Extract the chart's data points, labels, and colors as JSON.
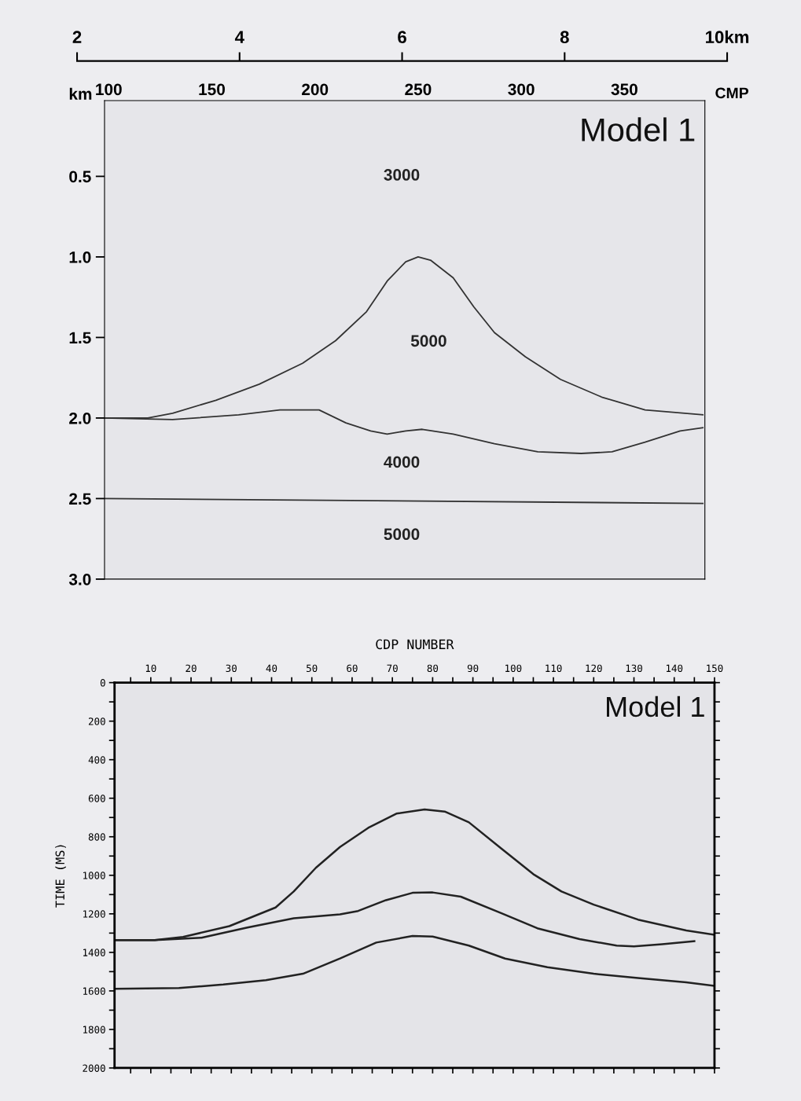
{
  "chart_data": [
    {
      "type": "line",
      "xlabel": "CMP",
      "ylabel": "km",
      "xlim": [
        98,
        389
      ],
      "xticks": [
        100,
        150,
        200,
        250,
        300,
        350
      ],
      "x2lim": [
        2,
        10
      ],
      "x2ticks": [
        2,
        4,
        6,
        8,
        {
          "value": 10,
          "label": "10km"
        }
      ],
      "ylim": [
        3.0,
        0.03
      ],
      "yticks": [
        {
          "value": 0.5,
          "label": "0.5"
        },
        {
          "value": 1.0,
          "label": "1.0"
        },
        {
          "value": 1.5,
          "label": "1.5"
        },
        {
          "value": 2.0,
          "label": "2.0"
        },
        {
          "value": 2.5,
          "label": "2.5"
        },
        {
          "value": 3.0,
          "label": "3.0"
        }
      ],
      "series": [
        {
          "color": "#333333",
          "x": [
            98,
            119,
            131,
            152,
            173,
            194,
            210,
            225,
            235,
            244,
            250,
            256,
            267,
            277,
            287,
            302,
            319,
            339,
            360,
            388
          ],
          "values": [
            2.0,
            2.0,
            1.97,
            1.89,
            1.79,
            1.66,
            1.52,
            1.34,
            1.15,
            1.03,
            1.0,
            1.02,
            1.13,
            1.31,
            1.47,
            1.62,
            1.76,
            1.87,
            1.95,
            1.98
          ]
        },
        {
          "color": "#333333",
          "x": [
            98,
            131,
            163,
            183,
            198,
            202,
            215,
            227,
            235,
            244,
            252,
            267,
            287,
            308,
            329,
            344,
            360,
            377,
            388
          ],
          "values": [
            2.0,
            2.01,
            1.98,
            1.95,
            1.95,
            1.95,
            2.03,
            2.08,
            2.1,
            2.08,
            2.07,
            2.1,
            2.16,
            2.21,
            2.22,
            2.21,
            2.15,
            2.08,
            2.06
          ]
        },
        {
          "color": "#333333",
          "x": [
            98,
            388
          ],
          "values": [
            2.5,
            2.53
          ]
        }
      ],
      "annotations": [
        "Model 1",
        "3000",
        "5000",
        "4000",
        "5000"
      ]
    },
    {
      "type": "line",
      "xlabel": "CDP NUMBER",
      "ylabel": "TIME (MS)",
      "xlim": [
        1,
        150
      ],
      "xticks": [
        {
          "value": 5,
          "label": null
        },
        10,
        {
          "value": 15,
          "label": null
        },
        20,
        {
          "value": 25,
          "label": null
        },
        30,
        {
          "value": 35,
          "label": null
        },
        40,
        {
          "value": 45,
          "label": null
        },
        50,
        {
          "value": 55,
          "label": null
        },
        60,
        {
          "value": 65,
          "label": null
        },
        70,
        {
          "value": 75,
          "label": null
        },
        80,
        {
          "value": 85,
          "label": null
        },
        90,
        {
          "value": 95,
          "label": null
        },
        100,
        {
          "value": 105,
          "label": null
        },
        110,
        {
          "value": 115,
          "label": null
        },
        120,
        {
          "value": 125,
          "label": null
        },
        130,
        {
          "value": 135,
          "label": null
        },
        140,
        {
          "value": 145,
          "label": null
        },
        150
      ],
      "ylim": [
        2000,
        0
      ],
      "yticks": [
        0,
        {
          "value": 100,
          "label": null
        },
        200,
        {
          "value": 300,
          "label": null
        },
        400,
        {
          "value": 500,
          "label": null
        },
        600,
        {
          "value": 700,
          "label": null
        },
        800,
        {
          "value": 900,
          "label": null
        },
        1000,
        {
          "value": 1100,
          "label": null
        },
        1200,
        {
          "value": 1300,
          "label": null
        },
        1400,
        {
          "value": 1500,
          "label": null
        },
        1600,
        {
          "value": 1700,
          "label": null
        },
        1800,
        {
          "value": 1900,
          "label": null
        },
        2000
      ],
      "series": [
        {
          "color": "#222222",
          "x": [
            1,
            11,
            18,
            29.5,
            41,
            45.5,
            51,
            57,
            64,
            71,
            78,
            83,
            89,
            97,
            105,
            112,
            120,
            131,
            143,
            150
          ],
          "values": [
            1336,
            1336,
            1320,
            1264,
            1167,
            1084,
            961,
            853,
            754,
            680,
            658,
            669,
            725,
            860,
            994,
            1084,
            1152,
            1230,
            1286,
            1309
          ]
        },
        {
          "color": "#222222",
          "x": [
            1,
            11,
            22.6,
            34,
            45.5,
            57,
            61.5,
            68.4,
            75,
            80,
            87,
            97,
            106,
            116.5,
            125.7,
            130,
            137,
            145
          ],
          "values": [
            1336,
            1336,
            1324,
            1271,
            1223,
            1203,
            1185,
            1129,
            1091,
            1089,
            1111,
            1196,
            1275,
            1331,
            1365,
            1369,
            1358,
            1342
          ]
        },
        {
          "color": "#222222",
          "x": [
            1,
            17,
            28,
            38.6,
            47.8,
            57,
            66,
            75,
            80,
            89,
            98,
            108.5,
            120,
            131,
            143,
            150
          ],
          "values": [
            1589,
            1585,
            1567,
            1544,
            1511,
            1432,
            1349,
            1315,
            1318,
            1365,
            1432,
            1477,
            1511,
            1533,
            1556,
            1574
          ]
        }
      ],
      "annotations": [
        "Model 1"
      ]
    }
  ]
}
